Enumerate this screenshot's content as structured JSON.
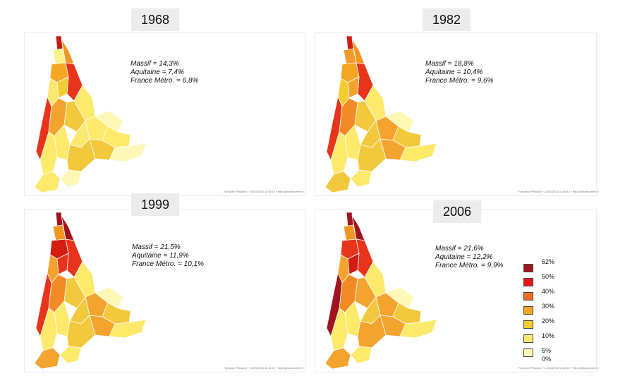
{
  "panels": [
    {
      "year": "1968",
      "stats": [
        "Massif = 14,3%",
        "Aquitaine = 7,4%",
        "France Métro. = 6,8%"
      ],
      "credit": "Fait avec Philcarto * 14/03/2015 11:46:13 * http://philcarto.free.fr",
      "region_colors": [
        "#c91a12",
        "#fdf18a",
        "#f29622",
        "#f5a623",
        "#e8341b",
        "#f3cc32",
        "#fbe870",
        "#e8341b",
        "#f3a42e",
        "#fde96a",
        "#f2c83c",
        "#fde96a",
        "#fbe870",
        "#fef7b6",
        "#fde96a",
        "#f2c83c",
        "#fef7b6",
        "#fde96a",
        "#f2c83c",
        "#fde96a",
        "#fef7b6",
        "#fde96a"
      ]
    },
    {
      "year": "1982",
      "stats": [
        "Massif = 18,8%",
        "Aquitaine = 10,4%",
        "France Métro. = 9,6%"
      ],
      "credit": "Fait avec Philcarto * 14/03/2015 11:46:13 * http://philcarto.free.fr",
      "region_colors": [
        "#d41c11",
        "#f39a2a",
        "#f29622",
        "#f5a623",
        "#e8341b",
        "#f3a42e",
        "#f3cc32",
        "#e8341b",
        "#f28b25",
        "#fde96a",
        "#f2c83c",
        "#f3a42e",
        "#f2c83c",
        "#fef7b6",
        "#f2c83c",
        "#f3a42e",
        "#fde96a",
        "#fde96a",
        "#f2c83c",
        "#fde96a",
        "#fde96a",
        "#f2c83c"
      ]
    },
    {
      "year": "1999",
      "stats": [
        "Massif = 21,5%",
        "Aquitaine = 11,9%",
        "France Métro. = 10,1%"
      ],
      "credit": "Fait avec Philcarto * 14/03/2015 11:46:13 * http://philcarto.free.fr",
      "region_colors": [
        "#a2141c",
        "#f29622",
        "#a2141c",
        "#d41c11",
        "#e8341b",
        "#e8341b",
        "#f3a42e",
        "#e8341b",
        "#f28b25",
        "#fde96a",
        "#f2c83c",
        "#f3a42e",
        "#f2c83c",
        "#fef7b6",
        "#f2c83c",
        "#f3a42e",
        "#fde96a",
        "#fde96a",
        "#f2c83c",
        "#fde96a",
        "#fde96a",
        "#f3a42e"
      ]
    },
    {
      "year": "2006",
      "stats": [
        "Massif = 21,6%",
        "Aquitaine = 12,2%",
        "France Métro. = 9,9%"
      ],
      "credit": "Fait avec Philcarto * 14/03/2015 11:46:13 * http://philcarto.free.fr",
      "region_colors": [
        "#a2141c",
        "#f29622",
        "#a2141c",
        "#e8341b",
        "#e8341b",
        "#d41c11",
        "#f3a42e",
        "#a2141c",
        "#f28b25",
        "#fde96a",
        "#f3a42e",
        "#f3a42e",
        "#f2c83c",
        "#fef7b6",
        "#f2c83c",
        "#f3a42e",
        "#fde96a",
        "#fde96a",
        "#f3a42e",
        "#fde96a",
        "#fde96a",
        "#f3a42e"
      ]
    }
  ],
  "legend": {
    "ticks": [
      "62%",
      "50%",
      "40%",
      "30%",
      "20%",
      "10%",
      "5%",
      "0%"
    ],
    "classes": [
      {
        "range": "50–62%",
        "color": "#a2141c"
      },
      {
        "range": "40–50%",
        "color": "#e31a1c"
      },
      {
        "range": "30–40%",
        "color": "#f36c21"
      },
      {
        "range": "20–30%",
        "color": "#f5a623"
      },
      {
        "range": "10–20%",
        "color": "#f3cc32"
      },
      {
        "range": "5–10%",
        "color": "#fbe870"
      },
      {
        "range": "0–5%",
        "color": "#fef7b6"
      }
    ]
  }
}
